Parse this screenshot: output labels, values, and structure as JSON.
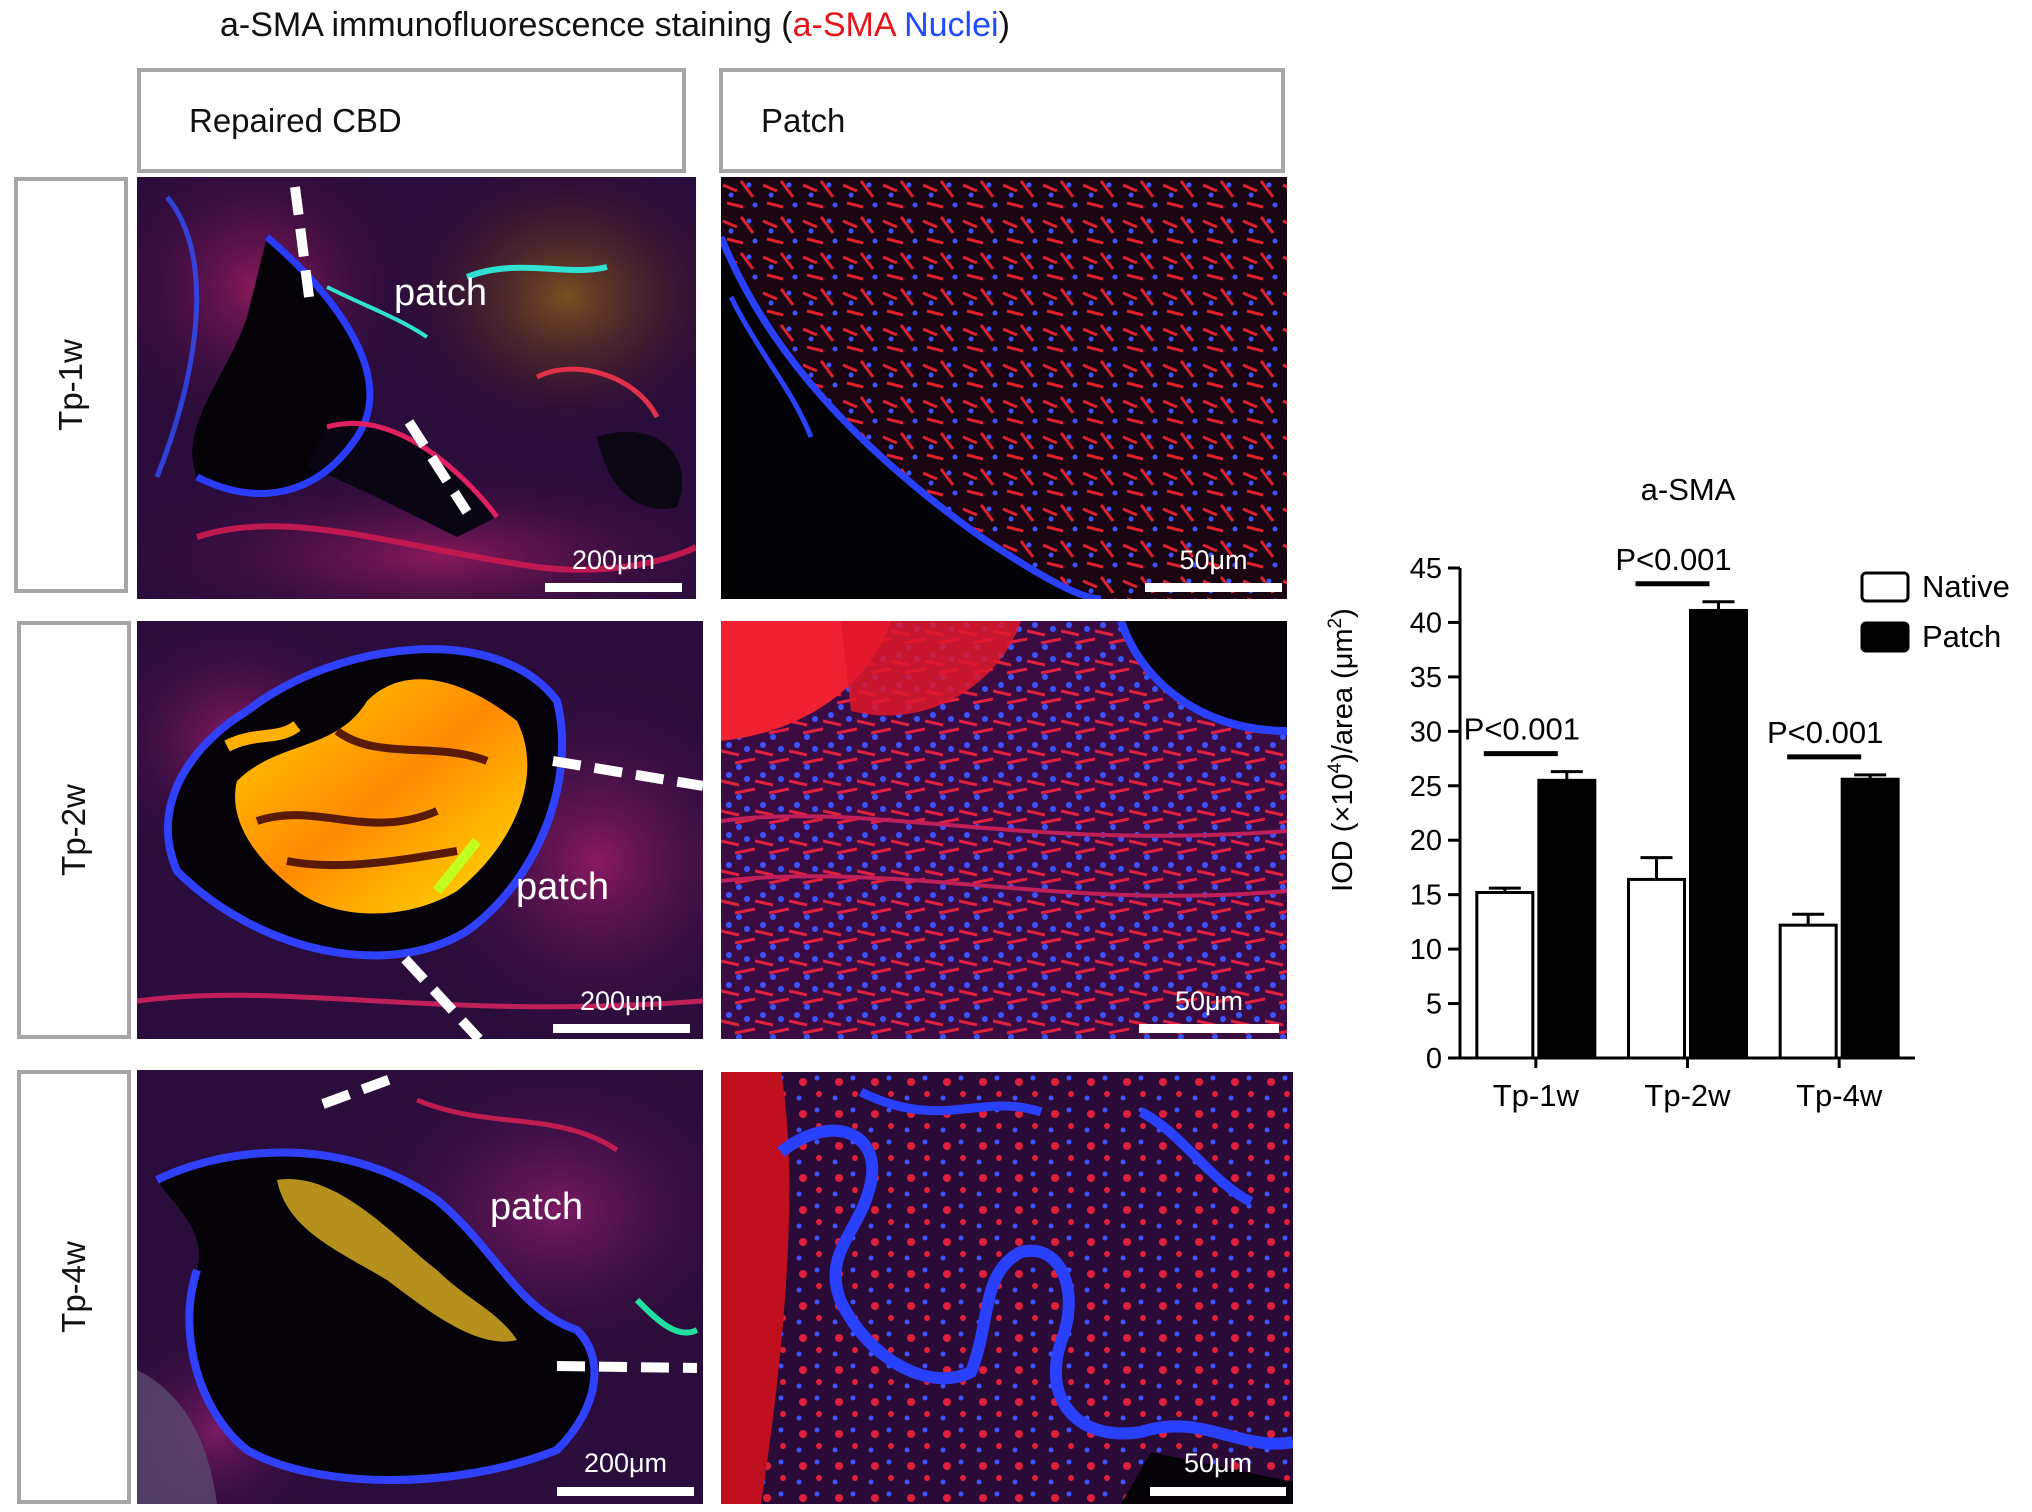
{
  "figure": {
    "title_prefix": "a-SMA immunofluorescence staining (",
    "title_red": "a-SMA",
    "title_space": " ",
    "title_blue": "Nuclei",
    "title_suffix": ")",
    "colors": {
      "asma": "#e8141c",
      "nuclei": "#1e4bff"
    }
  },
  "columns": [
    {
      "label": "Repaired CBD"
    },
    {
      "label": "Patch"
    }
  ],
  "rows": [
    {
      "label": "Tp-1w"
    },
    {
      "label": "Tp-2w"
    },
    {
      "label": "Tp-4w"
    }
  ],
  "panels": {
    "left": [
      {
        "patch_label": "patch",
        "scale": "200μm"
      },
      {
        "patch_label": "patch",
        "scale": "200μm"
      },
      {
        "patch_label": "patch",
        "scale": "200μm"
      }
    ],
    "right": [
      {
        "scale": "50μm"
      },
      {
        "scale": "50μm"
      },
      {
        "scale": "50μm"
      }
    ]
  },
  "chart_data": {
    "type": "bar",
    "title": "a-SMA",
    "ylabel_prefix": "IOD (×10",
    "ylabel_sup1": "4",
    "ylabel_mid": ")/area (μm",
    "ylabel_sup2": "2",
    "ylabel_suffix": ")",
    "xlabel": "",
    "categories": [
      "Tp-1w",
      "Tp-2w",
      "Tp-4w"
    ],
    "series": [
      {
        "name": "Native",
        "values": [
          15.2,
          16.4,
          12.2
        ],
        "errors": [
          0.4,
          2.0,
          1.0
        ],
        "fill": "#ffffff"
      },
      {
        "name": "Patch",
        "values": [
          25.5,
          41.1,
          25.6
        ],
        "errors": [
          0.8,
          0.8,
          0.4
        ],
        "fill": "#000000"
      }
    ],
    "ylim": [
      0,
      45
    ],
    "yticks": [
      0,
      5,
      10,
      15,
      20,
      25,
      30,
      35,
      40,
      45
    ],
    "annotations": [
      "P<0.001",
      "P<0.001",
      "P<0.001"
    ],
    "grid": false,
    "legend": "top-right"
  }
}
